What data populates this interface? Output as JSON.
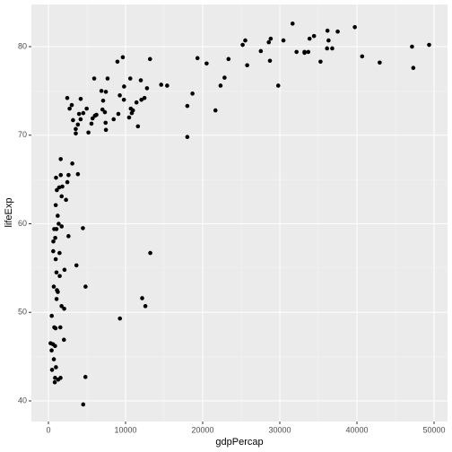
{
  "chart_data": {
    "type": "scatter",
    "x_label": "gdpPercap",
    "y_label": "lifeExp",
    "xlim": [
      -2209,
      51744
    ],
    "ylim": [
      37.67,
      84.76
    ],
    "xticks": [
      0,
      10000,
      20000,
      30000,
      40000,
      50000
    ],
    "yticks": [
      40,
      50,
      60,
      70,
      80
    ],
    "grid": true,
    "color": "#000000",
    "x": [
      49357,
      47307,
      47143,
      42952,
      40676,
      39725,
      37506,
      36798,
      36319,
      36181,
      36126,
      35278,
      34435,
      33860,
      33693,
      33207,
      33203,
      32170,
      31656,
      30470,
      28821,
      28570,
      29796,
      28718,
      25523,
      27538,
      25185,
      25768,
      23348,
      21655,
      22833,
      20510,
      19329,
      22316,
      18009,
      18009,
      18678,
      12154,
      13206,
      12570,
      9270,
      12057,
      15390,
      14619,
      13172,
      12779,
      11978,
      12452,
      10611,
      9809,
      9645,
      11416,
      10957,
      10461,
      10808,
      11606,
      9787,
      9254,
      10681,
      8458,
      9066,
      8948,
      6223,
      5937,
      7446,
      7007,
      6025,
      6873,
      7321,
      7409,
      7458,
      7093,
      4811,
      4797,
      4513,
      3633,
      2042,
      2602,
      5581,
      5728,
      5186,
      4519,
      4173,
      3820,
      4185,
      3970,
      3541,
      3822,
      4959,
      3548,
      3190,
      2452,
      3096,
      2749,
      2442,
      2281,
      2606,
      3025,
      2082,
      1803,
      1712,
      1545,
      1328,
      1463,
      1569,
      2014,
      1271,
      1704,
      1441,
      1714,
      1202,
      1391,
      986,
      753,
      943,
      1217,
      1042,
      1045,
      1107,
      883,
      1056,
      863,
      863,
      1091,
      944,
      1593,
      1598,
      691,
      641,
      706,
      975,
      579,
      759,
      824,
      620,
      415,
      430,
      470,
      278,
      4471,
      926,
      7670
    ],
    "y": [
      80.2,
      77.6,
      80.0,
      78.2,
      78.9,
      82.2,
      81.7,
      79.8,
      80.7,
      81.8,
      79.8,
      78.3,
      81.2,
      80.9,
      79.4,
      79.3,
      79.4,
      79.4,
      82.6,
      80.7,
      80.9,
      80.5,
      75.6,
      78.4,
      80.7,
      79.5,
      80.2,
      77.9,
      78.6,
      72.8,
      76.5,
      78.1,
      78.7,
      75.6,
      69.8,
      73.3,
      74.7,
      51.6,
      56.7,
      50.7,
      49.3,
      74.0,
      75.6,
      75.7,
      78.6,
      75.3,
      76.2,
      74.2,
      76.4,
      75.5,
      78.8,
      73.7,
      72.8,
      72.0,
      72.5,
      71.0,
      74.0,
      74.5,
      73.0,
      71.8,
      72.4,
      78.3,
      72.3,
      76.4,
      74.9,
      72.9,
      72.2,
      75.0,
      72.6,
      71.4,
      70.6,
      73.9,
      52.9,
      42.7,
      39.6,
      55.3,
      50.4,
      58.6,
      71.3,
      71.9,
      70.3,
      72.5,
      71.8,
      71.2,
      74.1,
      72.4,
      70.7,
      65.6,
      73.0,
      70.2,
      71.7,
      64.7,
      66.8,
      73.0,
      74.2,
      62.7,
      65.5,
      73.4,
      54.8,
      64.2,
      63.1,
      48.3,
      60.0,
      54.1,
      42.6,
      46.9,
      42.4,
      50.7,
      56.7,
      59.7,
      60.9,
      64.1,
      65.2,
      59.4,
      56.0,
      52.3,
      54.5,
      59.4,
      52.5,
      58.4,
      51.5,
      46.2,
      42.6,
      63.8,
      62.1,
      67.3,
      65.5,
      52.9,
      58.0,
      44.7,
      43.8,
      46.4,
      48.3,
      42.1,
      56.9,
      45.7,
      49.6,
      43.5,
      46.5,
      59.5,
      48.2,
      76.4
    ]
  }
}
